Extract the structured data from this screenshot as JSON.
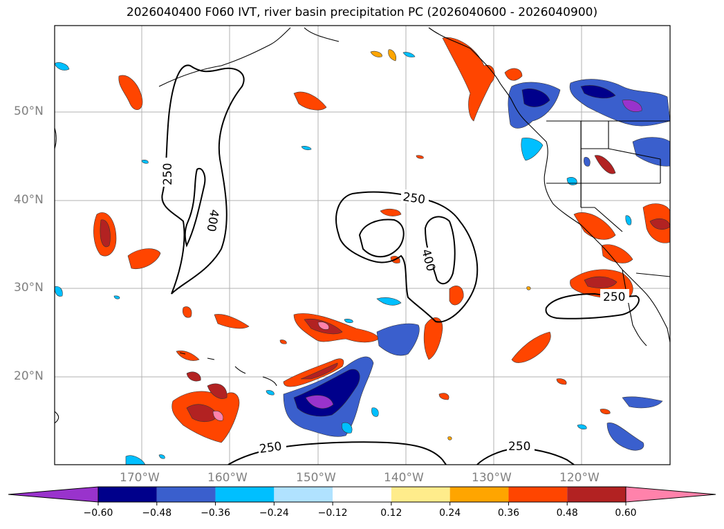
{
  "title": "2026040400 F060 IVT, river basin precipitation PC (2026040600 - 2026040900)",
  "lat_labels": [
    "50°N",
    "40°N",
    "30°N",
    "20°N"
  ],
  "lon_labels": [
    "170°W",
    "160°W",
    "150°W",
    "140°W",
    "130°W",
    "120°W"
  ],
  "contour_labels": [
    "250",
    "400",
    "250",
    "400",
    "250",
    "250",
    "250"
  ],
  "colorbar": {
    "colors": [
      "#9933CC",
      "#00008B",
      "#3A5FCD",
      "#00BFFF",
      "#B0E2FF",
      "#FFFFFF",
      "#FFEC8B",
      "#FFA500",
      "#FF4500",
      "#B22222",
      "#FF82AB"
    ],
    "tick_labels": [
      "−0.60",
      "−0.48",
      "−0.36",
      "−0.24",
      "−0.12",
      "0.12",
      "0.24",
      "0.36",
      "0.48",
      "0.60"
    ],
    "extend": "both"
  }
}
